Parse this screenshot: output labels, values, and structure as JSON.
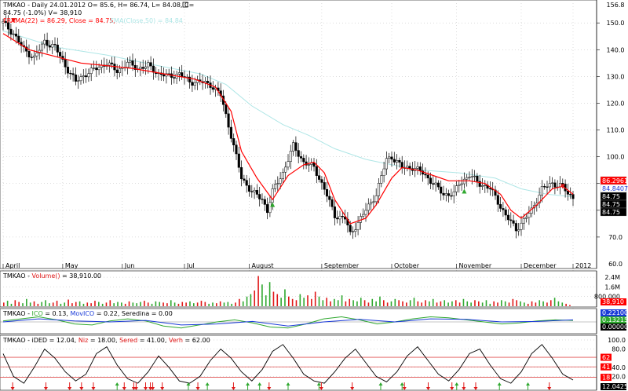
{
  "price_panel": {
    "header_line1": "TMKAO - Daily 24.01.2012 O= 85.6, H= 86.74, L= 84.08, C=",
    "header_line2": "84.75 (-1.0%) V= 38,910",
    "frama_label": "FRAMA(22) = 86.29, Close = 84.75,",
    "ema_label": "EMA(Close,50) = 84.84"
  },
  "volume_panel": {
    "header_prefix": "TMKAO - ",
    "header_series": "Volume()",
    "header_value": " = 38,910.00"
  },
  "ico_panel": {
    "header_prefix": "TMKAO - ",
    "ico_label": "ICO",
    "ico_value": " = 0.13, ",
    "movico_label": "MovICO",
    "movico_value": " = 0.22, ",
    "seredina_label": "Seredina",
    "seredina_value": " = 0.00"
  },
  "ided_panel": {
    "header_prefix": "TMKAO - iDED = 12.04, ",
    "niz_label": "Niz",
    "niz_value": " = 18.00, ",
    "sered_label": "Sered",
    "sered_value": " = 41.00, ",
    "verh_label": "Verh",
    "verh_value": " = 62.00"
  },
  "colors": {
    "up": "#2fa82f",
    "down": "#000000",
    "frama": "#ff0000",
    "ema": "#aee6e6",
    "vol_up": "#2fa82f",
    "vol_down": "#e01818",
    "ico": "#2fa82f",
    "movico": "#1a3ad8",
    "ided": "#000000",
    "levels": "#e05050",
    "signal_up": "#2fa82f",
    "signal_down": "#e01818"
  },
  "chart_data": [
    {
      "type": "candlestick",
      "x_ticks": [
        "April",
        "May",
        "Jun",
        "Jul",
        "August",
        "September",
        "October",
        "November",
        "December",
        "2012"
      ],
      "y_ticks": [
        70.0,
        80.0,
        90.0,
        100.0,
        110.0,
        120.0,
        130.0,
        140.0,
        150.0
      ],
      "y_top_label": "156.8",
      "y_bottom_label": "60.0",
      "ylim": [
        60,
        156.8
      ],
      "close_path": [
        [
          0,
          150
        ],
        [
          4,
          146
        ],
        [
          8,
          140
        ],
        [
          12,
          137
        ],
        [
          16,
          143
        ],
        [
          20,
          141
        ],
        [
          24,
          134
        ],
        [
          28,
          128
        ],
        [
          32,
          131
        ],
        [
          36,
          133
        ],
        [
          40,
          135
        ],
        [
          44,
          132
        ],
        [
          48,
          135
        ],
        [
          52,
          133
        ],
        [
          56,
          134
        ],
        [
          60,
          131
        ],
        [
          64,
          130
        ],
        [
          68,
          131
        ],
        [
          72,
          128
        ],
        [
          76,
          128
        ],
        [
          80,
          127
        ],
        [
          84,
          123
        ],
        [
          88,
          108
        ],
        [
          92,
          92
        ],
        [
          96,
          87
        ],
        [
          100,
          84
        ],
        [
          102,
          80
        ],
        [
          104,
          87
        ],
        [
          108,
          94
        ],
        [
          112,
          104
        ],
        [
          116,
          98
        ],
        [
          120,
          96
        ],
        [
          124,
          88
        ],
        [
          128,
          78
        ],
        [
          132,
          77
        ],
        [
          134,
          71
        ],
        [
          136,
          74
        ],
        [
          140,
          80
        ],
        [
          144,
          86
        ],
        [
          148,
          99
        ],
        [
          150,
          100
        ],
        [
          154,
          96
        ],
        [
          158,
          96
        ],
        [
          162,
          94
        ],
        [
          166,
          90
        ],
        [
          170,
          86
        ],
        [
          174,
          86
        ],
        [
          176,
          90
        ],
        [
          180,
          93
        ],
        [
          184,
          90
        ],
        [
          188,
          88
        ],
        [
          190,
          85
        ],
        [
          194,
          78
        ],
        [
          198,
          73
        ],
        [
          200,
          75
        ],
        [
          204,
          80
        ],
        [
          208,
          88
        ],
        [
          212,
          90
        ],
        [
          216,
          89
        ],
        [
          218,
          86
        ],
        [
          220,
          85
        ]
      ],
      "frama_path": [
        [
          0,
          146
        ],
        [
          10,
          140
        ],
        [
          30,
          135
        ],
        [
          50,
          133
        ],
        [
          62,
          131
        ],
        [
          74,
          129
        ],
        [
          82,
          126
        ],
        [
          88,
          117
        ],
        [
          92,
          102
        ],
        [
          98,
          92
        ],
        [
          104,
          84
        ],
        [
          110,
          93
        ],
        [
          116,
          97
        ],
        [
          120,
          98
        ],
        [
          124,
          94
        ],
        [
          128,
          84
        ],
        [
          134,
          75
        ],
        [
          140,
          77
        ],
        [
          144,
          82
        ],
        [
          150,
          92
        ],
        [
          154,
          96
        ],
        [
          160,
          95
        ],
        [
          166,
          93
        ],
        [
          172,
          91
        ],
        [
          180,
          91
        ],
        [
          186,
          90
        ],
        [
          192,
          86
        ],
        [
          196,
          80
        ],
        [
          200,
          77
        ],
        [
          206,
          82
        ],
        [
          212,
          88
        ],
        [
          216,
          89
        ],
        [
          220,
          86
        ]
      ],
      "ema_path": [
        [
          0,
          147
        ],
        [
          20,
          141
        ],
        [
          40,
          138
        ],
        [
          60,
          134
        ],
        [
          76,
          131
        ],
        [
          86,
          127
        ],
        [
          96,
          119
        ],
        [
          108,
          112
        ],
        [
          118,
          108
        ],
        [
          128,
          103
        ],
        [
          140,
          99
        ],
        [
          150,
          97
        ],
        [
          162,
          95
        ],
        [
          176,
          94
        ],
        [
          190,
          92
        ],
        [
          200,
          88
        ],
        [
          210,
          86
        ],
        [
          220,
          85
        ]
      ],
      "last_labels": [
        "86.2961",
        "84.8407",
        "84.75",
        "84.75",
        "84.75"
      ]
    },
    {
      "type": "bar",
      "series_name": "Volume()",
      "y_ticks": [
        "2.4M",
        "1.6M",
        "800,000"
      ],
      "last_label": "38,910",
      "values": [
        0.3,
        0.45,
        0.2,
        0.5,
        0.35,
        0.25,
        0.6,
        0.3,
        0.4,
        0.2,
        0.35,
        0.5,
        0.25,
        0.3,
        0.45,
        0.2,
        0.3,
        0.55,
        0.25,
        0.35,
        0.4,
        0.2,
        0.3,
        0.25,
        0.45,
        0.35,
        0.2,
        0.3,
        0.5,
        0.25,
        0.35,
        0.3,
        0.2,
        0.4,
        0.3,
        0.25,
        0.35,
        0.45,
        0.3,
        0.2,
        0.4,
        0.35,
        0.3,
        0.25,
        0.5,
        0.3,
        0.2,
        0.35,
        0.3,
        0.4,
        0.25,
        0.3,
        0.45,
        0.35,
        0.2,
        0.3,
        0.25,
        0.4,
        0.3,
        0.35,
        0.2,
        0.3,
        0.6,
        0.4,
        0.8,
        1.0,
        1.3,
        2.5,
        1.8,
        0.9,
        2.0,
        1.2,
        1.0,
        0.7,
        1.4,
        0.8,
        0.6,
        0.5,
        1.0,
        0.7,
        0.9,
        0.6,
        1.2,
        0.8,
        0.5,
        0.7,
        0.4,
        0.6,
        0.5,
        0.9,
        0.4,
        0.6,
        0.5,
        0.4,
        0.7,
        0.5,
        0.3,
        0.6,
        0.4,
        0.8,
        0.5,
        0.3,
        0.4,
        0.6,
        0.5,
        0.4,
        0.3,
        0.5,
        0.7,
        0.4,
        0.3,
        0.5,
        0.4,
        0.6,
        0.3,
        0.4,
        0.5,
        0.3,
        0.4,
        0.5,
        0.3,
        0.6,
        0.4,
        0.3,
        0.5,
        0.4,
        0.3,
        0.5,
        0.2,
        0.4,
        0.3,
        0.5,
        0.4,
        0.3,
        0.6,
        0.5,
        0.4,
        0.3,
        0.2,
        0.4,
        0.3,
        0.5,
        0.4,
        0.3,
        0.5,
        0.7,
        0.4,
        0.3,
        0.2,
        0.1
      ]
    },
    {
      "type": "line",
      "series": [
        {
          "name": "ICO"
        },
        {
          "name": "MovICO"
        },
        {
          "name": "Seredina"
        }
      ],
      "last_labels": [
        "0.221001",
        "0.132153",
        "0.00000"
      ],
      "ico_path": [
        [
          0,
          0.1
        ],
        [
          10,
          0.3
        ],
        [
          20,
          0.5
        ],
        [
          30,
          0.2
        ],
        [
          40,
          -0.2
        ],
        [
          50,
          -0.3
        ],
        [
          60,
          0.1
        ],
        [
          70,
          0.3
        ],
        [
          80,
          0.1
        ],
        [
          90,
          -0.4
        ],
        [
          100,
          -0.6
        ],
        [
          110,
          -0.3
        ],
        [
          120,
          0.0
        ],
        [
          130,
          0.2
        ],
        [
          140,
          -0.1
        ],
        [
          150,
          -0.5
        ],
        [
          160,
          -0.6
        ],
        [
          170,
          -0.2
        ],
        [
          180,
          0.3
        ],
        [
          190,
          0.5
        ],
        [
          200,
          0.2
        ],
        [
          210,
          -0.2
        ],
        [
          220,
          0.0
        ],
        [
          230,
          0.3
        ],
        [
          240,
          0.5
        ],
        [
          250,
          0.4
        ],
        [
          260,
          0.2
        ],
        [
          270,
          0.0
        ],
        [
          280,
          -0.2
        ],
        [
          290,
          -0.1
        ],
        [
          300,
          0.1
        ],
        [
          310,
          0.2
        ],
        [
          320,
          0.15
        ]
      ],
      "movico_path": [
        [
          0,
          0.0
        ],
        [
          20,
          0.3
        ],
        [
          40,
          0.1
        ],
        [
          60,
          0.0
        ],
        [
          80,
          0.15
        ],
        [
          100,
          -0.3
        ],
        [
          120,
          -0.2
        ],
        [
          140,
          0.05
        ],
        [
          160,
          -0.4
        ],
        [
          180,
          0.0
        ],
        [
          200,
          0.25
        ],
        [
          220,
          0.0
        ],
        [
          240,
          0.3
        ],
        [
          260,
          0.25
        ],
        [
          280,
          0.0
        ],
        [
          300,
          0.05
        ],
        [
          320,
          0.2
        ]
      ]
    },
    {
      "type": "line",
      "series": [
        {
          "name": "iDED"
        },
        {
          "name": "Niz"
        },
        {
          "name": "Sered"
        },
        {
          "name": "Verh"
        }
      ],
      "y_ticks": [
        "100.0",
        "80.0",
        "40.0",
        "20.0"
      ],
      "levels": [
        18,
        41,
        62
      ],
      "level_labels": [
        "62",
        "41",
        "18"
      ],
      "last_label": "12.0425",
      "ylim": [
        0,
        100
      ],
      "ided_path": [
        [
          0,
          70
        ],
        [
          4,
          20
        ],
        [
          8,
          5
        ],
        [
          12,
          40
        ],
        [
          16,
          80
        ],
        [
          20,
          60
        ],
        [
          24,
          30
        ],
        [
          28,
          10
        ],
        [
          32,
          25
        ],
        [
          36,
          70
        ],
        [
          40,
          85
        ],
        [
          44,
          45
        ],
        [
          48,
          15
        ],
        [
          52,
          5
        ],
        [
          56,
          30
        ],
        [
          60,
          65
        ],
        [
          64,
          40
        ],
        [
          68,
          10
        ],
        [
          72,
          5
        ],
        [
          76,
          20
        ],
        [
          80,
          55
        ],
        [
          84,
          80
        ],
        [
          88,
          60
        ],
        [
          92,
          30
        ],
        [
          96,
          10
        ],
        [
          100,
          35
        ],
        [
          104,
          75
        ],
        [
          108,
          90
        ],
        [
          112,
          60
        ],
        [
          116,
          25
        ],
        [
          120,
          10
        ],
        [
          124,
          5
        ],
        [
          128,
          30
        ],
        [
          132,
          60
        ],
        [
          136,
          80
        ],
        [
          140,
          50
        ],
        [
          144,
          20
        ],
        [
          148,
          8
        ],
        [
          152,
          30
        ],
        [
          156,
          65
        ],
        [
          160,
          85
        ],
        [
          164,
          55
        ],
        [
          168,
          25
        ],
        [
          172,
          10
        ],
        [
          176,
          35
        ],
        [
          180,
          70
        ],
        [
          184,
          80
        ],
        [
          188,
          45
        ],
        [
          192,
          15
        ],
        [
          196,
          5
        ],
        [
          200,
          30
        ],
        [
          204,
          70
        ],
        [
          208,
          90
        ],
        [
          212,
          60
        ],
        [
          216,
          25
        ],
        [
          220,
          12
        ]
      ],
      "down_signals": [
        4,
        18,
        28,
        33,
        38,
        51,
        55,
        56,
        60,
        62,
        63,
        67,
        82,
        97,
        112,
        134,
        147,
        169,
        179,
        189,
        194,
        199,
        230
      ],
      "up_signals": [
        48,
        78,
        86,
        103,
        108,
        120,
        133,
        159,
        168,
        191,
        209,
        221
      ]
    }
  ]
}
